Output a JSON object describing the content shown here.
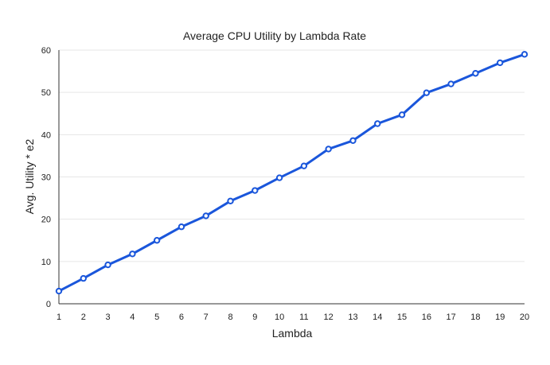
{
  "chart_data": {
    "type": "line",
    "title": "Average CPU Utility by Lambda Rate",
    "xlabel": "Lambda",
    "ylabel": "Avg. Utility * e2",
    "x": [
      1,
      2,
      3,
      4,
      5,
      6,
      7,
      8,
      9,
      10,
      11,
      12,
      13,
      14,
      15,
      16,
      17,
      18,
      19,
      20
    ],
    "series": [
      {
        "values": [
          3.0,
          6.0,
          9.2,
          11.8,
          15.0,
          18.2,
          20.8,
          24.3,
          26.8,
          29.8,
          32.6,
          36.6,
          38.6,
          42.6,
          44.7,
          49.9,
          52.0,
          54.5,
          57.0,
          59.0
        ],
        "color": "#1a56db"
      }
    ],
    "yticks": [
      0,
      10,
      20,
      30,
      40,
      50,
      60
    ],
    "xticks": [
      1,
      2,
      3,
      4,
      5,
      6,
      7,
      8,
      9,
      10,
      11,
      12,
      13,
      14,
      15,
      16,
      17,
      18,
      19,
      20
    ],
    "xlim": [
      1,
      20
    ],
    "ylim": [
      0,
      60
    ],
    "grid": true,
    "legend": "none"
  }
}
